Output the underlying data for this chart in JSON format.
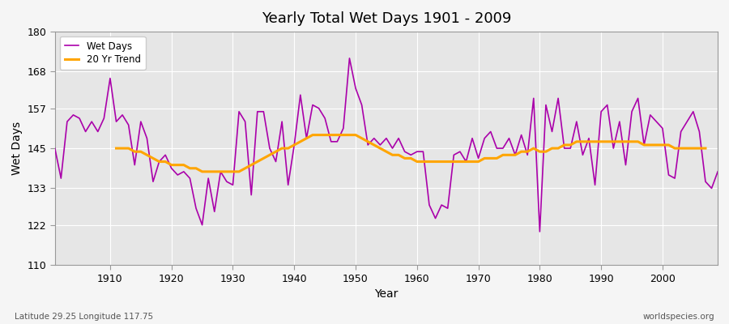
{
  "title": "Yearly Total Wet Days 1901 - 2009",
  "xlabel": "Year",
  "ylabel": "Wet Days",
  "plot_bg_color": "#e6e6e6",
  "fig_bg_color": "#f5f5f5",
  "wet_days_color": "#aa00aa",
  "trend_color": "#FFA500",
  "footnote_left": "Latitude 29.25 Longitude 117.75",
  "footnote_right": "worldspecies.org",
  "ylim": [
    110,
    180
  ],
  "yticks": [
    110,
    122,
    133,
    145,
    157,
    168,
    180
  ],
  "xticks": [
    1910,
    1920,
    1930,
    1940,
    1950,
    1960,
    1970,
    1980,
    1990,
    2000
  ],
  "years": [
    1901,
    1902,
    1903,
    1904,
    1905,
    1906,
    1907,
    1908,
    1909,
    1910,
    1911,
    1912,
    1913,
    1914,
    1915,
    1916,
    1917,
    1918,
    1919,
    1920,
    1921,
    1922,
    1923,
    1924,
    1925,
    1926,
    1927,
    1928,
    1929,
    1930,
    1931,
    1932,
    1933,
    1934,
    1935,
    1936,
    1937,
    1938,
    1939,
    1940,
    1941,
    1942,
    1943,
    1944,
    1945,
    1946,
    1947,
    1948,
    1949,
    1950,
    1951,
    1952,
    1953,
    1954,
    1955,
    1956,
    1957,
    1958,
    1959,
    1960,
    1961,
    1962,
    1963,
    1964,
    1965,
    1966,
    1967,
    1968,
    1969,
    1970,
    1971,
    1972,
    1973,
    1974,
    1975,
    1976,
    1977,
    1978,
    1979,
    1980,
    1981,
    1982,
    1983,
    1984,
    1985,
    1986,
    1987,
    1988,
    1989,
    1990,
    1991,
    1992,
    1993,
    1994,
    1995,
    1996,
    1997,
    1998,
    1999,
    2000,
    2001,
    2002,
    2003,
    2004,
    2005,
    2006,
    2007,
    2008,
    2009
  ],
  "wet_days": [
    145,
    136,
    153,
    155,
    154,
    150,
    153,
    150,
    154,
    166,
    153,
    155,
    152,
    140,
    153,
    148,
    135,
    141,
    143,
    139,
    137,
    138,
    136,
    127,
    122,
    136,
    126,
    138,
    135,
    134,
    156,
    153,
    131,
    156,
    156,
    145,
    141,
    153,
    134,
    146,
    161,
    148,
    158,
    157,
    154,
    147,
    147,
    151,
    172,
    163,
    158,
    146,
    148,
    146,
    148,
    145,
    148,
    144,
    143,
    144,
    144,
    128,
    124,
    128,
    127,
    143,
    144,
    141,
    148,
    142,
    148,
    150,
    145,
    145,
    148,
    143,
    149,
    143,
    160,
    120,
    158,
    150,
    160,
    145,
    145,
    153,
    143,
    148,
    134,
    156,
    158,
    145,
    153,
    140,
    156,
    160,
    146,
    155,
    153,
    151,
    137,
    136,
    150,
    153,
    156,
    150,
    135,
    133,
    138
  ],
  "trend": [
    null,
    null,
    null,
    null,
    null,
    null,
    null,
    null,
    null,
    null,
    145,
    145,
    145,
    144,
    144,
    143,
    142,
    141,
    141,
    140,
    140,
    140,
    139,
    139,
    138,
    138,
    138,
    138,
    138,
    138,
    138,
    139,
    140,
    141,
    142,
    143,
    144,
    145,
    145,
    146,
    147,
    148,
    149,
    149,
    149,
    149,
    149,
    149,
    149,
    149,
    148,
    147,
    146,
    145,
    144,
    143,
    143,
    142,
    142,
    141,
    141,
    141,
    141,
    141,
    141,
    141,
    141,
    141,
    141,
    141,
    142,
    142,
    142,
    143,
    143,
    143,
    144,
    144,
    145,
    144,
    144,
    145,
    145,
    146,
    146,
    147,
    147,
    147,
    147,
    147,
    147,
    147,
    147,
    147,
    147,
    147,
    146,
    146,
    146,
    146,
    146,
    145,
    145,
    145,
    145,
    145,
    145,
    null,
    null
  ]
}
